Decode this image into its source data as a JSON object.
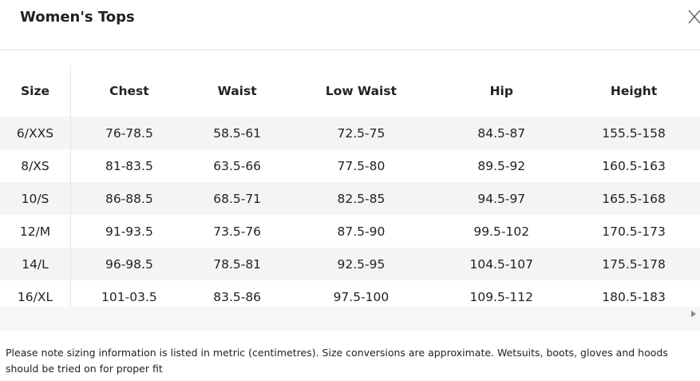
{
  "header": {
    "title": "Women's Tops"
  },
  "table": {
    "columns": [
      "Size",
      "Chest",
      "Waist",
      "Low Waist",
      "Hip",
      "Height"
    ],
    "rows": [
      [
        "6/XXS",
        "76-78.5",
        "58.5-61",
        "72.5-75",
        "84.5-87",
        "155.5-158"
      ],
      [
        "8/XS",
        "81-83.5",
        "63.5-66",
        "77.5-80",
        "89.5-92",
        "160.5-163"
      ],
      [
        "10/S",
        "86-88.5",
        "68.5-71",
        "82.5-85",
        "94.5-97",
        "165.5-168"
      ],
      [
        "12/M",
        "91-93.5",
        "73.5-76",
        "87.5-90",
        "99.5-102",
        "170.5-173"
      ],
      [
        "14/L",
        "96-98.5",
        "78.5-81",
        "92.5-95",
        "104.5-107",
        "175.5-178"
      ],
      [
        "16/XL",
        "101-03.5",
        "83.5-86",
        "97.5-100",
        "109.5-112",
        "180.5-183"
      ]
    ]
  },
  "note": "Please note sizing information is listed in metric (centimetres). Size conversions are approximate. Wetsuits, boots, gloves and hoods should be tried on for proper fit"
}
